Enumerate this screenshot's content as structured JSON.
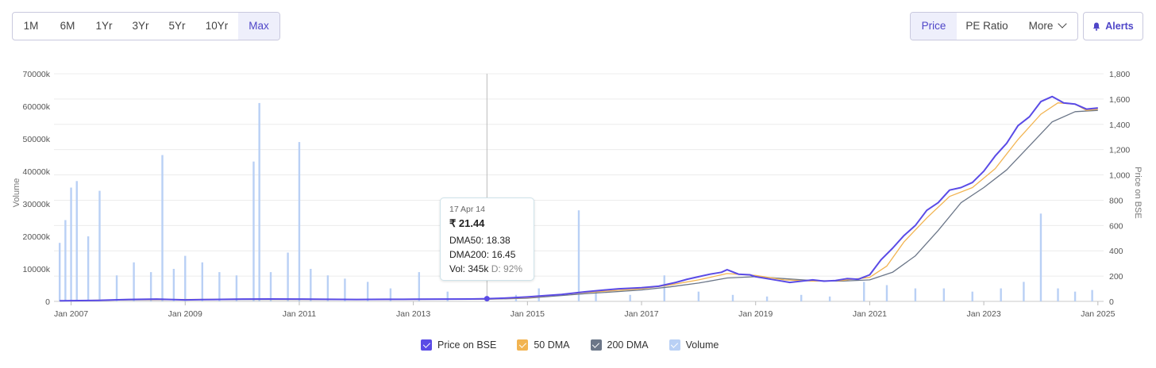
{
  "range_buttons": [
    {
      "key": "1m",
      "label": "1M",
      "active": false
    },
    {
      "key": "6m",
      "label": "6M",
      "active": false
    },
    {
      "key": "1yr",
      "label": "1Yr",
      "active": false
    },
    {
      "key": "3yr",
      "label": "3Yr",
      "active": false
    },
    {
      "key": "5yr",
      "label": "5Yr",
      "active": false
    },
    {
      "key": "10yr",
      "label": "10Yr",
      "active": false
    },
    {
      "key": "max",
      "label": "Max",
      "active": true
    }
  ],
  "view_buttons": {
    "price": "Price",
    "pe_ratio": "PE Ratio",
    "more": "More"
  },
  "alerts": {
    "label": "Alerts",
    "icon": "bell-icon"
  },
  "tooltip": {
    "date": "17 Apr 14",
    "price": "₹ 21.44",
    "dma50": "DMA50: 18.38",
    "dma200": "DMA200: 16.45",
    "vol": "Vol: 345k",
    "delivery": "D: 92%"
  },
  "legend": [
    {
      "key": "price",
      "label": "Price on BSE",
      "color": "#5a4be6"
    },
    {
      "key": "dma50",
      "label": "50 DMA",
      "color": "#f2b451"
    },
    {
      "key": "dma200",
      "label": "200 DMA",
      "color": "#6b7688"
    },
    {
      "key": "volume",
      "label": "Volume",
      "color": "#b9d0f5"
    }
  ],
  "chart_data": {
    "type": "line",
    "x_axis": {
      "ticks": [
        "Jan 2007",
        "Jan 2009",
        "Jan 2011",
        "Jan 2013",
        "Jan 2015",
        "Jan 2017",
        "Jan 2019",
        "Jan 2021",
        "Jan 2023",
        "Jan 2025"
      ],
      "range": [
        2006.7,
        2025.1
      ]
    },
    "y_left": {
      "label": "Volume",
      "ticks": [
        "0",
        "10000k",
        "20000k",
        "30000k",
        "40000k",
        "50000k",
        "60000k",
        "70000k"
      ],
      "range": [
        0,
        70000
      ]
    },
    "y_right": {
      "label": "Price on BSE",
      "ticks": [
        "0",
        "200",
        "400",
        "600",
        "800",
        "1,000",
        "1,200",
        "1,400",
        "1,600",
        "1,800"
      ],
      "range": [
        0,
        1800
      ]
    },
    "grid": true,
    "legend_position": "bottom",
    "crosshair_x": 2014.29,
    "series": [
      {
        "name": "Price on BSE",
        "axis": "right",
        "points": [
          [
            2006.8,
            5
          ],
          [
            2007.5,
            8
          ],
          [
            2008.0,
            15
          ],
          [
            2008.5,
            18
          ],
          [
            2009.0,
            12
          ],
          [
            2009.5,
            15
          ],
          [
            2010.0,
            18
          ],
          [
            2010.5,
            19
          ],
          [
            2011.0,
            18
          ],
          [
            2011.5,
            16
          ],
          [
            2012.0,
            15
          ],
          [
            2012.5,
            16
          ],
          [
            2013.0,
            17
          ],
          [
            2013.5,
            18
          ],
          [
            2014.0,
            19
          ],
          [
            2014.29,
            21.44
          ],
          [
            2014.6,
            26
          ],
          [
            2015.0,
            35
          ],
          [
            2015.3,
            45
          ],
          [
            2015.6,
            55
          ],
          [
            2015.8,
            65
          ],
          [
            2016.0,
            75
          ],
          [
            2016.3,
            88
          ],
          [
            2016.6,
            100
          ],
          [
            2017.0,
            108
          ],
          [
            2017.3,
            120
          ],
          [
            2017.6,
            150
          ],
          [
            2017.8,
            175
          ],
          [
            2018.0,
            195
          ],
          [
            2018.2,
            215
          ],
          [
            2018.4,
            230
          ],
          [
            2018.5,
            250
          ],
          [
            2018.7,
            215
          ],
          [
            2018.9,
            210
          ],
          [
            2019.0,
            195
          ],
          [
            2019.2,
            180
          ],
          [
            2019.4,
            165
          ],
          [
            2019.6,
            150
          ],
          [
            2019.8,
            160
          ],
          [
            2020.0,
            170
          ],
          [
            2020.2,
            160
          ],
          [
            2020.4,
            165
          ],
          [
            2020.6,
            180
          ],
          [
            2020.8,
            175
          ],
          [
            2021.0,
            210
          ],
          [
            2021.2,
            330
          ],
          [
            2021.4,
            420
          ],
          [
            2021.6,
            520
          ],
          [
            2021.8,
            600
          ],
          [
            2022.0,
            720
          ],
          [
            2022.2,
            780
          ],
          [
            2022.4,
            880
          ],
          [
            2022.6,
            900
          ],
          [
            2022.8,
            940
          ],
          [
            2023.0,
            1030
          ],
          [
            2023.2,
            1150
          ],
          [
            2023.4,
            1250
          ],
          [
            2023.6,
            1390
          ],
          [
            2023.8,
            1460
          ],
          [
            2024.0,
            1580
          ],
          [
            2024.2,
            1620
          ],
          [
            2024.4,
            1570
          ],
          [
            2024.6,
            1560
          ],
          [
            2024.8,
            1520
          ],
          [
            2025.0,
            1530
          ]
        ]
      },
      {
        "name": "50 DMA",
        "axis": "right",
        "points": [
          [
            2006.8,
            4
          ],
          [
            2008.0,
            14
          ],
          [
            2010.0,
            16
          ],
          [
            2012.0,
            15
          ],
          [
            2014.29,
            18.38
          ],
          [
            2015.0,
            30
          ],
          [
            2016.0,
            70
          ],
          [
            2017.0,
            100
          ],
          [
            2017.5,
            130
          ],
          [
            2018.0,
            170
          ],
          [
            2018.5,
            220
          ],
          [
            2019.0,
            205
          ],
          [
            2019.5,
            170
          ],
          [
            2020.0,
            160
          ],
          [
            2020.5,
            165
          ],
          [
            2021.0,
            190
          ],
          [
            2021.3,
            280
          ],
          [
            2021.6,
            470
          ],
          [
            2022.0,
            660
          ],
          [
            2022.4,
            830
          ],
          [
            2022.8,
            900
          ],
          [
            2023.2,
            1050
          ],
          [
            2023.6,
            1280
          ],
          [
            2024.0,
            1480
          ],
          [
            2024.3,
            1570
          ],
          [
            2024.6,
            1560
          ],
          [
            2024.8,
            1510
          ],
          [
            2025.0,
            1520
          ]
        ]
      },
      {
        "name": "200 DMA",
        "axis": "right",
        "points": [
          [
            2006.8,
            3
          ],
          [
            2008.0,
            12
          ],
          [
            2010.0,
            15
          ],
          [
            2012.0,
            15
          ],
          [
            2014.29,
            16.45
          ],
          [
            2015.0,
            25
          ],
          [
            2016.0,
            60
          ],
          [
            2017.0,
            90
          ],
          [
            2017.5,
            115
          ],
          [
            2018.0,
            145
          ],
          [
            2018.5,
            185
          ],
          [
            2019.0,
            195
          ],
          [
            2019.5,
            180
          ],
          [
            2020.0,
            165
          ],
          [
            2020.5,
            160
          ],
          [
            2021.0,
            170
          ],
          [
            2021.4,
            230
          ],
          [
            2021.8,
            360
          ],
          [
            2022.2,
            560
          ],
          [
            2022.6,
            780
          ],
          [
            2023.0,
            900
          ],
          [
            2023.4,
            1040
          ],
          [
            2023.8,
            1230
          ],
          [
            2024.2,
            1420
          ],
          [
            2024.6,
            1500
          ],
          [
            2025.0,
            1510
          ]
        ]
      },
      {
        "name": "Volume",
        "axis": "left",
        "type": "bar",
        "points": [
          [
            2006.8,
            18000
          ],
          [
            2006.9,
            25000
          ],
          [
            2007.0,
            35000
          ],
          [
            2007.1,
            37000
          ],
          [
            2007.3,
            20000
          ],
          [
            2007.5,
            34000
          ],
          [
            2007.8,
            8000
          ],
          [
            2008.1,
            12000
          ],
          [
            2008.4,
            9000
          ],
          [
            2008.6,
            45000
          ],
          [
            2008.8,
            10000
          ],
          [
            2009.0,
            14000
          ],
          [
            2009.3,
            12000
          ],
          [
            2009.6,
            9000
          ],
          [
            2009.9,
            8000
          ],
          [
            2010.2,
            43000
          ],
          [
            2010.3,
            61000
          ],
          [
            2010.5,
            9000
          ],
          [
            2010.8,
            15000
          ],
          [
            2011.0,
            49000
          ],
          [
            2011.2,
            10000
          ],
          [
            2011.5,
            8000
          ],
          [
            2011.8,
            7000
          ],
          [
            2012.2,
            6000
          ],
          [
            2012.6,
            4000
          ],
          [
            2013.1,
            9000
          ],
          [
            2013.6,
            3000
          ],
          [
            2014.29,
            345
          ],
          [
            2014.8,
            2000
          ],
          [
            2015.2,
            4000
          ],
          [
            2015.9,
            28000
          ],
          [
            2016.2,
            3000
          ],
          [
            2016.8,
            2000
          ],
          [
            2017.4,
            8000
          ],
          [
            2018.0,
            3000
          ],
          [
            2018.6,
            2000
          ],
          [
            2019.2,
            1500
          ],
          [
            2019.8,
            2000
          ],
          [
            2020.3,
            1500
          ],
          [
            2020.9,
            6000
          ],
          [
            2021.3,
            5000
          ],
          [
            2021.8,
            4000
          ],
          [
            2022.3,
            4000
          ],
          [
            2022.8,
            3000
          ],
          [
            2023.3,
            4000
          ],
          [
            2023.7,
            6000
          ],
          [
            2024.0,
            27000
          ],
          [
            2024.3,
            4000
          ],
          [
            2024.6,
            3000
          ],
          [
            2024.9,
            3500
          ]
        ]
      }
    ]
  }
}
